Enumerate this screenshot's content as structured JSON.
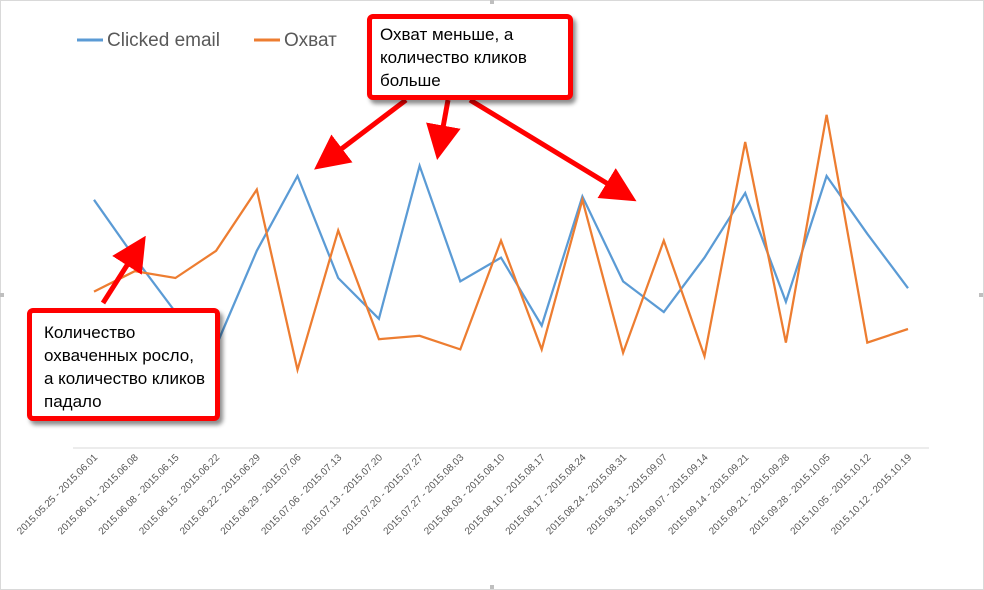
{
  "chart_data": {
    "type": "line",
    "categories": [
      "2015.05.25 - 2015.06.01",
      "2015.06.01 - 2015.06.08",
      "2015.06.08 - 2015.06.15",
      "2015.06.15 - 2015.06.22",
      "2015.06.22 - 2015.06.29",
      "2015.06.29 - 2015.07.06",
      "2015.07.06 - 2015.07.13",
      "2015.07.13 - 2015.07.20",
      "2015.07.20 - 2015.07.27",
      "2015.07.27 - 2015.08.03",
      "2015.08.03 - 2015.08.10",
      "2015.08.10 - 2015.08.17",
      "2015.08.17 - 2015.08.24",
      "2015.08.24 - 2015.08.31",
      "2015.08.31 - 2015.09.07",
      "2015.09.07 - 2015.09.14",
      "2015.09.14 - 2015.09.21",
      "2015.09.21 - 2015.09.28",
      "2015.09.28 - 2015.10.05",
      "2015.10.05 - 2015.10.12",
      "2015.10.12 - 2015.10.19"
    ],
    "series": [
      {
        "name": "Clicked email",
        "color": "#5b9bd5",
        "values": [
          73,
          56,
          40,
          30,
          58,
          80,
          50,
          38,
          83,
          49,
          56,
          36,
          74,
          49,
          40,
          56,
          75,
          43,
          80,
          63,
          47
        ]
      },
      {
        "name": "Охват",
        "color": "#ed7d31",
        "values": [
          46,
          52,
          50,
          58,
          76,
          23,
          64,
          32,
          33,
          29,
          61,
          29,
          73,
          28,
          61,
          27,
          90,
          31,
          98,
          31,
          35
        ]
      }
    ],
    "ylim": [
      0,
      125
    ],
    "grid": false,
    "legend_position": "top-left",
    "xlabel": "",
    "ylabel": ""
  },
  "annotations": {
    "top": "Охват меньше, а количество кликов больше",
    "left": "Количество охваченных росло, а количество кликов падало",
    "arrow_color": "#ff0000"
  }
}
